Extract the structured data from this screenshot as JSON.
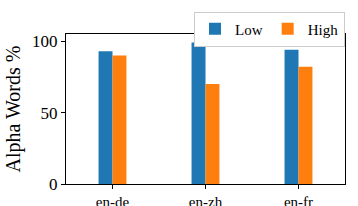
{
  "chart_data": {
    "type": "bar",
    "y_label": "Alpha Words %",
    "categories": [
      "en-de",
      "en-zh",
      "en-fr"
    ],
    "series": [
      {
        "name": "Low",
        "color": "#1f77b4",
        "values": [
          93,
          99,
          94
        ]
      },
      {
        "name": "High",
        "color": "#ff7f0e",
        "values": [
          90,
          70,
          82
        ]
      }
    ],
    "ylim": [
      0,
      105
    ],
    "yticks": [
      0,
      50,
      100
    ],
    "grid": false,
    "legend": "upper right"
  }
}
